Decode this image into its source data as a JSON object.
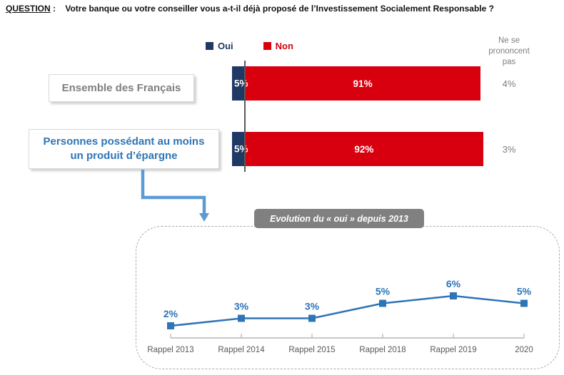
{
  "question": {
    "label": "QUESTION",
    "separator": " :",
    "text": "Votre banque ou votre conseiller vous a-t-il déjà proposé de l’Investissement Socialement Responsable ?"
  },
  "legend": {
    "oui": "Oui",
    "non": "Non"
  },
  "nsp_header": "Ne se\nprononcent\npas",
  "rows": [
    {
      "label": "Ensemble des Français",
      "oui": "5%",
      "non": "91%",
      "nsp": "4%"
    },
    {
      "label": "Personnes possédant au moins un produit d’épargne",
      "oui": "5%",
      "non": "92%",
      "nsp": "3%"
    }
  ],
  "evolution": {
    "title": "Evolution du « oui » depuis 2013"
  },
  "colors": {
    "oui": "#1F3864",
    "non": "#D8000F",
    "accent": "#2E75B6",
    "arrow": "#5B9BD5",
    "gray": "#7F7F7F",
    "axis": "#A6A6A6",
    "cat": "#595959",
    "badge": "#808080",
    "divider": "#595959",
    "dash": "#ABABAB",
    "border": "#D9D9D9"
  },
  "chart_data": [
    {
      "type": "bar",
      "orientation": "horizontal",
      "stacked": true,
      "unit": "%",
      "title": "Votre banque ou votre conseiller vous a-t-il déjà proposé de l’Investissement Socialement Responsable ?",
      "categories": [
        "Ensemble des Français",
        "Personnes possédant au moins un produit d’épargne"
      ],
      "series": [
        {
          "name": "Oui",
          "values": [
            5,
            5
          ],
          "color": "#1F3864"
        },
        {
          "name": "Non",
          "values": [
            91,
            92
          ],
          "color": "#D8000F"
        },
        {
          "name": "Ne se prononcent pas",
          "values": [
            4,
            3
          ],
          "color": "#FFFFFF"
        }
      ],
      "legend_position": "top",
      "data_labels": true
    },
    {
      "type": "line",
      "title": "Evolution du « oui » depuis 2013",
      "categories": [
        "Rappel 2013",
        "Rappel 2014",
        "Rappel 2015",
        "Rappel 2018",
        "Rappel 2019",
        "2020"
      ],
      "series": [
        {
          "name": "Oui",
          "values": [
            2,
            3,
            3,
            5,
            6,
            5
          ],
          "color": "#2E75B6"
        }
      ],
      "unit": "%",
      "ylim": [
        0,
        8
      ],
      "grid": false,
      "marker": "square",
      "data_labels": true,
      "legend_position": "none"
    }
  ]
}
